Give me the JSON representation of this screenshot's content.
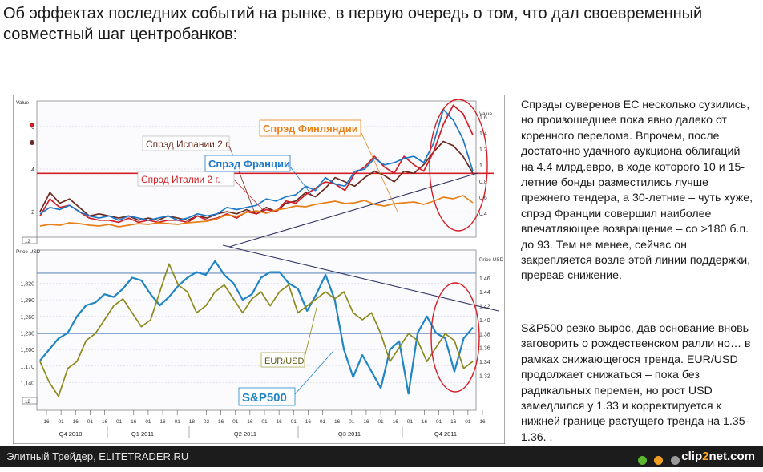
{
  "headline": "Об эффектах последних событий на рынке, в первую очередь о том, что дал своевременный совместный шаг центробанков:",
  "commentary": [
    "Спрэды суверенов ЕС несколько сузились, но произошедшее пока явно далеко от коренного перелома. Впрочем, после достаточно удачного аукциона облигаций на 4.4 млрд.евро, в ходе которого 10 и 15-летние бонды разместились лучше прежнего тендера, а 30-летние – чуть хуже, спрэд Франции совершил наиболее впечатляющее возвращение – со >180 б.п. до 93. Тем не менее, сейчас он закрепляется возле этой линии поддержки, прервав снижение.",
    "S&P500 резко вырос, дав основание вновь заговорить о рождественском ралли  но… в рамках снижающегося тренда. EUR/USD продолжает снижаться – пока без радикальных перемен, но рост USD замедлился у 1.33 и корректируется к нижней границе растущего тренда на 1.35-1.36. ."
  ],
  "footer": {
    "source": "Элитный Трейдер, ELITETRADER.RU",
    "logo_main": "clip",
    "logo_accent": "2",
    "logo_tail": "net.com"
  },
  "colors": {
    "spain": "#6b2b1f",
    "italy": "#d21f26",
    "france": "#1e78c8",
    "finland": "#e8801a",
    "sp500": "#1f85c4",
    "eurusd": "#8c8a1c",
    "accent": "#d31f26",
    "trend": "#333366"
  },
  "icons": {
    "footer_1": "green-dot-icon",
    "footer_2": "orange-dot-icon",
    "footer_3": "gray-dot-icon"
  },
  "chart_data": [
    {
      "type": "line",
      "panel": "top",
      "y_title_left": "Value",
      "y_title_right": "Value",
      "badge": "12",
      "ylim_left": [
        0.8,
        7.2
      ],
      "ylim_right": [
        0.1,
        1.8
      ],
      "y_ticks_left": [
        "6",
        "4",
        "2"
      ],
      "y_ticks_right": [
        "1.6",
        "1.4",
        "1.2",
        "1",
        "0.8",
        "0.6",
        "0.4"
      ],
      "reference_line": 3.8,
      "series": [
        {
          "name": "Спрэд Испании 2 г.",
          "axis": "left",
          "values": [
            2.0,
            2.9,
            2.4,
            2.6,
            2.2,
            1.8,
            1.9,
            1.8,
            1.7,
            1.8,
            1.6,
            1.7,
            1.6,
            1.8,
            1.7,
            1.6,
            1.8,
            1.7,
            1.9,
            2.0,
            1.9,
            2.1,
            1.9,
            2.2,
            2.0,
            2.4,
            2.5,
            2.9,
            2.7,
            3.1,
            3.6,
            3.4,
            3.2,
            3.6,
            3.9,
            3.7,
            3.4,
            3.9,
            3.8,
            4.2,
            4.8,
            5.3,
            5.1,
            4.6,
            3.8
          ]
        },
        {
          "name": "Спрэд Италии 2 г.",
          "axis": "left",
          "values": [
            1.8,
            2.6,
            2.2,
            2.3,
            2.0,
            1.7,
            1.6,
            1.6,
            1.5,
            1.7,
            1.5,
            1.6,
            1.5,
            1.6,
            1.6,
            1.5,
            1.8,
            1.6,
            1.7,
            1.9,
            1.7,
            2.0,
            1.9,
            2.1,
            2.0,
            2.5,
            2.4,
            2.8,
            3.1,
            3.4,
            3.3,
            3.0,
            3.8,
            4.1,
            4.6,
            4.1,
            3.8,
            4.6,
            4.2,
            3.9,
            4.8,
            6.1,
            7.0,
            6.6,
            5.6
          ]
        },
        {
          "name": "Спрэд Франции",
          "axis": "left",
          "values": [
            1.9,
            2.2,
            2.1,
            2.3,
            2.0,
            1.8,
            1.7,
            1.8,
            1.6,
            1.8,
            1.7,
            1.6,
            1.7,
            1.8,
            1.6,
            1.7,
            1.9,
            1.8,
            1.9,
            2.2,
            2.1,
            2.2,
            2.3,
            2.6,
            2.5,
            2.7,
            2.8,
            3.2,
            3.0,
            3.6,
            3.3,
            3.2,
            3.9,
            4.0,
            4.5,
            4.2,
            4.3,
            4.5,
            4.6,
            4.3,
            5.2,
            6.8,
            6.3,
            5.4,
            3.9
          ]
        },
        {
          "name": "Спрэд Финляндии",
          "axis": "right",
          "values": [
            0.24,
            0.26,
            0.25,
            0.28,
            0.27,
            0.25,
            0.24,
            0.26,
            0.23,
            0.25,
            0.27,
            0.26,
            0.28,
            0.27,
            0.26,
            0.28,
            0.29,
            0.3,
            0.33,
            0.38,
            0.36,
            0.41,
            0.43,
            0.4,
            0.44,
            0.46,
            0.49,
            0.48,
            0.51,
            0.53,
            0.55,
            0.52,
            0.53,
            0.56,
            0.51,
            0.49,
            0.52,
            0.53,
            0.54,
            0.51,
            0.55,
            0.6,
            0.58,
            0.62,
            0.53
          ]
        }
      ],
      "annotations": [
        "Спрэд Испании 2 г.",
        "Спрэд Италии 2 г.",
        "Спрэд Франции",
        "Спрэд Финляндии"
      ]
    },
    {
      "type": "line",
      "panel": "bottom",
      "y_title_left": "Price USD",
      "y_title_right": "Price USD",
      "badge": "12",
      "ylim_left": [
        1090,
        1380
      ],
      "ylim_right": [
        1.27,
        1.5
      ],
      "y_ticks_left": [
        "1,320",
        "1,290",
        "1,260",
        "1,230",
        "1,200",
        "1,170",
        "1,140"
      ],
      "y_ticks_right": [
        "1.46",
        "1.44",
        "1.42",
        "1.40",
        "1.38",
        "1.36",
        "1.34",
        "1.32"
      ],
      "horizontal_lines": [
        1338,
        1229
      ],
      "series": [
        {
          "name": "S&P500",
          "axis": "left",
          "values": [
            1180,
            1200,
            1220,
            1230,
            1260,
            1280,
            1285,
            1300,
            1295,
            1310,
            1330,
            1325,
            1300,
            1280,
            1295,
            1315,
            1330,
            1340,
            1335,
            1360,
            1335,
            1320,
            1290,
            1300,
            1330,
            1340,
            1340,
            1320,
            1310,
            1270,
            1300,
            1335,
            1290,
            1200,
            1150,
            1190,
            1160,
            1130,
            1200,
            1215,
            1120,
            1230,
            1260,
            1230,
            1220,
            1160,
            1220,
            1240
          ]
        },
        {
          "name": "EUR/USD",
          "axis": "right",
          "values": [
            1.34,
            1.31,
            1.29,
            1.33,
            1.34,
            1.37,
            1.38,
            1.4,
            1.42,
            1.43,
            1.41,
            1.39,
            1.4,
            1.44,
            1.48,
            1.45,
            1.44,
            1.41,
            1.42,
            1.44,
            1.45,
            1.43,
            1.41,
            1.43,
            1.44,
            1.42,
            1.44,
            1.45,
            1.41,
            1.42,
            1.43,
            1.44,
            1.43,
            1.44,
            1.41,
            1.4,
            1.41,
            1.38,
            1.34,
            1.36,
            1.38,
            1.37,
            1.34,
            1.36,
            1.38,
            1.37,
            1.33,
            1.34
          ]
        }
      ],
      "annotations": [
        "EUR/USD",
        "S&P500"
      ]
    }
  ],
  "x_axis": {
    "day_ticks": [
      "16",
      "01",
      "16",
      "01",
      "16",
      "01",
      "16",
      "01",
      "16",
      "01",
      "18",
      "02",
      "16",
      "01",
      "16",
      "01",
      "16",
      "01",
      "16",
      "01",
      "16",
      "01",
      "16",
      "01",
      "16",
      "01",
      "16",
      "01",
      "16",
      "01",
      "16"
    ],
    "quarters": [
      "Q4 2010",
      "Q1 2011",
      "Q2 2011",
      "Q3 2011",
      "Q4 2011"
    ]
  }
}
